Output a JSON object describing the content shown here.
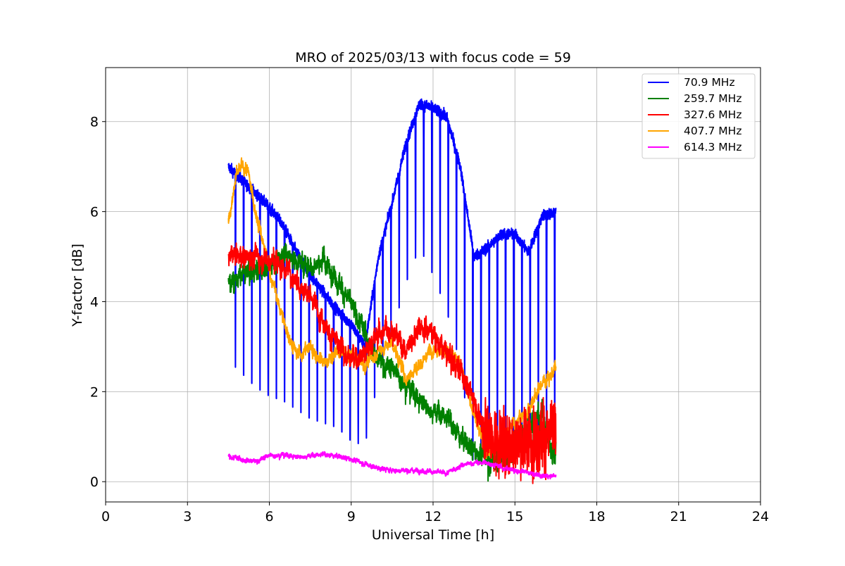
{
  "chart_data": {
    "type": "line",
    "title": "MRO of 2025/03/13 with focus code = 59",
    "xlabel": "Universal Time [h]",
    "ylabel": "Y-factor [dB]",
    "xlim": [
      0,
      24
    ],
    "ylim": [
      -0.45,
      9.2
    ],
    "xticks": [
      0,
      3,
      6,
      9,
      12,
      15,
      18,
      21,
      24
    ],
    "yticks": [
      0,
      2,
      4,
      6,
      8
    ],
    "grid": true,
    "legend_position": "top-right",
    "series": [
      {
        "name": " 70.9 MHz",
        "color": "#0000ff",
        "envelope_x": [
          4.5,
          5.0,
          5.5,
          6.0,
          6.5,
          7.0,
          7.5,
          8.0,
          8.5,
          9.0,
          9.5,
          10.0,
          10.5,
          11.0,
          11.5,
          12.0,
          12.5,
          13.0,
          13.5,
          14.0,
          14.5,
          15.0,
          15.5,
          16.0,
          16.5
        ],
        "envelope_y": [
          7.0,
          6.7,
          6.4,
          6.1,
          5.7,
          5.1,
          4.6,
          4.2,
          3.8,
          3.5,
          3.0,
          5.0,
          6.2,
          7.5,
          8.4,
          8.3,
          8.1,
          7.0,
          5.0,
          5.2,
          5.5,
          5.5,
          5.1,
          5.9,
          6.0
        ],
        "dip_min_y": [
          2.7,
          2.4,
          2.1,
          1.9,
          1.8,
          1.6,
          1.4,
          1.3,
          1.2,
          0.9,
          0.8,
          2.3,
          3.3,
          4.4,
          5.2,
          4.6,
          3.8,
          2.6,
          0.3,
          0.6,
          0.9,
          0.7,
          0.8,
          1.2,
          1.0
        ],
        "dip_interval_h": 0.3
      },
      {
        "name": "259.7 MHz",
        "color": "#008000",
        "x": [
          4.5,
          5.0,
          5.5,
          6.0,
          6.5,
          7.0,
          7.5,
          8.0,
          8.5,
          9.0,
          9.5,
          10.0,
          10.5,
          11.0,
          11.5,
          12.0,
          12.5,
          13.0,
          13.5,
          14.0,
          14.5,
          15.0,
          15.5,
          16.0,
          16.5
        ],
        "y": [
          4.4,
          4.6,
          4.7,
          4.8,
          5.1,
          4.9,
          4.8,
          4.9,
          4.5,
          3.9,
          3.3,
          2.7,
          2.5,
          2.2,
          1.8,
          1.6,
          1.4,
          1.0,
          0.7,
          0.5,
          0.6,
          0.9,
          1.2,
          1.5,
          0.5
        ],
        "noise": 0.18
      },
      {
        "name": "327.6 MHz",
        "color": "#ff0000",
        "x": [
          4.5,
          5.0,
          5.5,
          6.0,
          6.5,
          7.0,
          7.5,
          8.0,
          8.5,
          9.0,
          9.5,
          10.0,
          10.5,
          11.0,
          11.5,
          12.0,
          12.5,
          13.0,
          13.5,
          14.0,
          14.5,
          15.0,
          15.5,
          16.0,
          16.5
        ],
        "y": [
          5.0,
          5.0,
          5.0,
          4.95,
          4.8,
          4.5,
          4.1,
          3.6,
          3.0,
          2.7,
          2.9,
          3.3,
          3.4,
          2.9,
          3.5,
          3.3,
          2.8,
          2.5,
          1.8,
          1.0,
          0.8,
          0.9,
          0.9,
          1.0,
          1.1
        ],
        "noise": 0.2
      },
      {
        "name": "407.7 MHz",
        "color": "#ffa500",
        "x": [
          4.5,
          4.8,
          5.0,
          5.2,
          5.5,
          6.0,
          6.5,
          7.0,
          7.5,
          8.0,
          8.5,
          9.0,
          9.5,
          10.0,
          10.5,
          11.0,
          11.5,
          12.0,
          12.5,
          13.0,
          13.5,
          14.0,
          14.5,
          15.0,
          15.5,
          16.0,
          16.5
        ],
        "y": [
          5.8,
          6.8,
          7.0,
          6.9,
          6.0,
          4.7,
          3.6,
          2.8,
          3.0,
          2.6,
          2.9,
          2.8,
          2.6,
          2.9,
          3.1,
          2.3,
          2.6,
          3.0,
          2.9,
          2.6,
          1.5,
          0.6,
          0.9,
          1.3,
          1.6,
          2.2,
          2.5
        ],
        "noise": 0.12
      },
      {
        "name": "614.3 MHz",
        "color": "#ff00ff",
        "x": [
          4.5,
          5.0,
          5.5,
          6.0,
          6.5,
          7.0,
          7.5,
          8.0,
          8.5,
          9.0,
          9.5,
          10.0,
          10.5,
          11.0,
          11.5,
          12.0,
          12.5,
          13.0,
          13.5,
          14.0,
          14.5,
          15.0,
          15.5,
          16.0,
          16.5
        ],
        "y": [
          0.55,
          0.5,
          0.45,
          0.58,
          0.6,
          0.55,
          0.58,
          0.6,
          0.57,
          0.5,
          0.4,
          0.3,
          0.25,
          0.25,
          0.25,
          0.22,
          0.18,
          0.35,
          0.42,
          0.42,
          0.32,
          0.25,
          0.2,
          0.12,
          0.12
        ],
        "noise": 0.04
      }
    ]
  }
}
